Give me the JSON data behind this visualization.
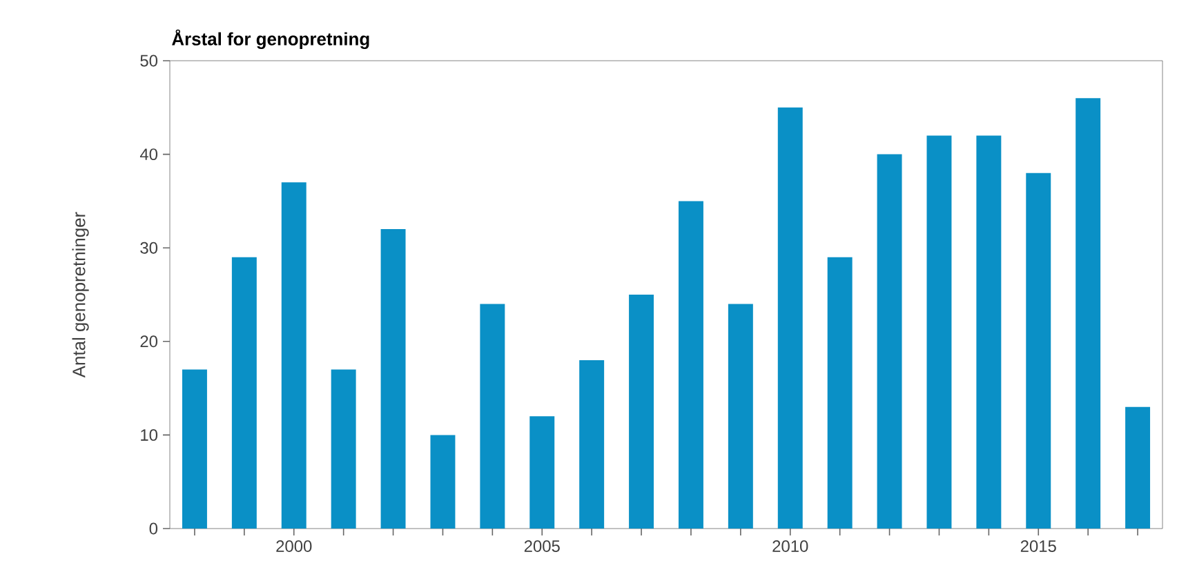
{
  "chart_data": {
    "type": "bar",
    "title": "Årstal for genopretning",
    "ylabel": "Antal genopretninger",
    "x": [
      1998,
      1999,
      2000,
      2001,
      2002,
      2003,
      2004,
      2005,
      2006,
      2007,
      2008,
      2009,
      2010,
      2011,
      2012,
      2013,
      2014,
      2015,
      2016,
      2017
    ],
    "values": [
      17,
      29,
      37,
      17,
      32,
      10,
      24,
      12,
      18,
      25,
      35,
      24,
      45,
      29,
      40,
      42,
      42,
      38,
      46,
      13
    ],
    "color": "#0a90c6",
    "xlim": [
      1997.5,
      2017.5
    ],
    "xticks": [
      {
        "value": 1998,
        "label": null
      },
      {
        "value": 1999,
        "label": null
      },
      2000,
      {
        "value": 2001,
        "label": null
      },
      {
        "value": 2002,
        "label": null
      },
      {
        "value": 2003,
        "label": null
      },
      {
        "value": 2004,
        "label": null
      },
      2005,
      {
        "value": 2006,
        "label": null
      },
      {
        "value": 2007,
        "label": null
      },
      {
        "value": 2008,
        "label": null
      },
      {
        "value": 2009,
        "label": null
      },
      2010,
      {
        "value": 2011,
        "label": null
      },
      {
        "value": 2012,
        "label": null
      },
      {
        "value": 2013,
        "label": null
      },
      {
        "value": 2014,
        "label": null
      },
      2015,
      {
        "value": 2016,
        "label": null
      },
      {
        "value": 2017,
        "label": null
      }
    ],
    "ylim": [
      0,
      50
    ],
    "yticks": [
      0,
      10,
      20,
      30,
      40,
      50
    ]
  }
}
